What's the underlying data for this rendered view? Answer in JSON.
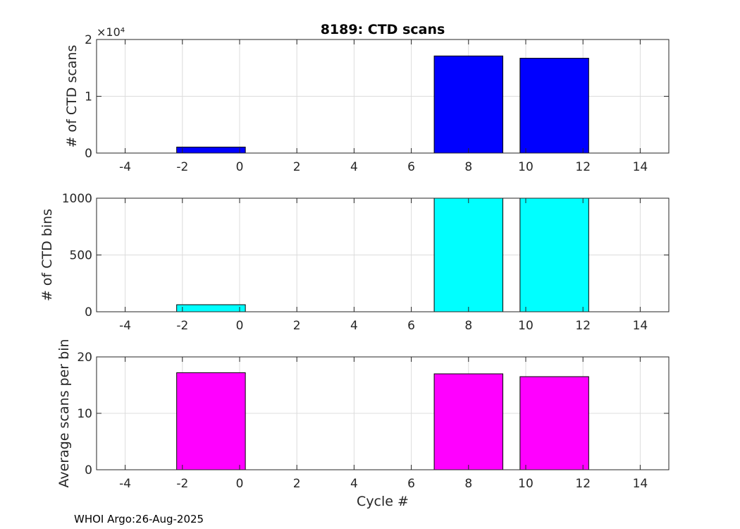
{
  "title": "8189: CTD scans",
  "footer": "WHOI Argo:26-Aug-2025",
  "xlabel": "Cycle #",
  "chart_data": [
    {
      "type": "bar",
      "ylabel": "# of CTD scans",
      "color": "#0000ff",
      "xlim": [
        -5,
        15
      ],
      "xticks": [
        -4,
        -2,
        0,
        2,
        4,
        6,
        8,
        10,
        12,
        14
      ],
      "ylim": [
        0,
        20000
      ],
      "yticks": [
        0,
        10000,
        20000
      ],
      "ytick_labels": [
        "0",
        "1",
        "2"
      ],
      "y_exponent_label": "×10⁴",
      "bars": [
        {
          "x": -1,
          "value": 1050
        },
        {
          "x": 8,
          "value": 17100
        },
        {
          "x": 11,
          "value": 16700
        }
      ],
      "bar_width": 2.4
    },
    {
      "type": "bar",
      "ylabel": "# of CTD bins",
      "color": "#00ffff",
      "xlim": [
        -5,
        15
      ],
      "xticks": [
        -4,
        -2,
        0,
        2,
        4,
        6,
        8,
        10,
        12,
        14
      ],
      "ylim": [
        0,
        1000
      ],
      "yticks": [
        0,
        500,
        1000
      ],
      "ytick_labels": [
        "0",
        "500",
        "1000"
      ],
      "bars": [
        {
          "x": -1,
          "value": 62
        },
        {
          "x": 8,
          "value": 1000
        },
        {
          "x": 11,
          "value": 1000
        }
      ],
      "bar_width": 2.4
    },
    {
      "type": "bar",
      "ylabel": "Average scans per bin",
      "color": "#ff00ff",
      "xlim": [
        -5,
        15
      ],
      "xticks": [
        -4,
        -2,
        0,
        2,
        4,
        6,
        8,
        10,
        12,
        14
      ],
      "ylim": [
        0,
        20
      ],
      "yticks": [
        0,
        10,
        20
      ],
      "ytick_labels": [
        "0",
        "10",
        "20"
      ],
      "bars": [
        {
          "x": -1,
          "value": 17.2
        },
        {
          "x": 8,
          "value": 17.0
        },
        {
          "x": 11,
          "value": 16.5
        }
      ],
      "bar_width": 2.4
    }
  ]
}
